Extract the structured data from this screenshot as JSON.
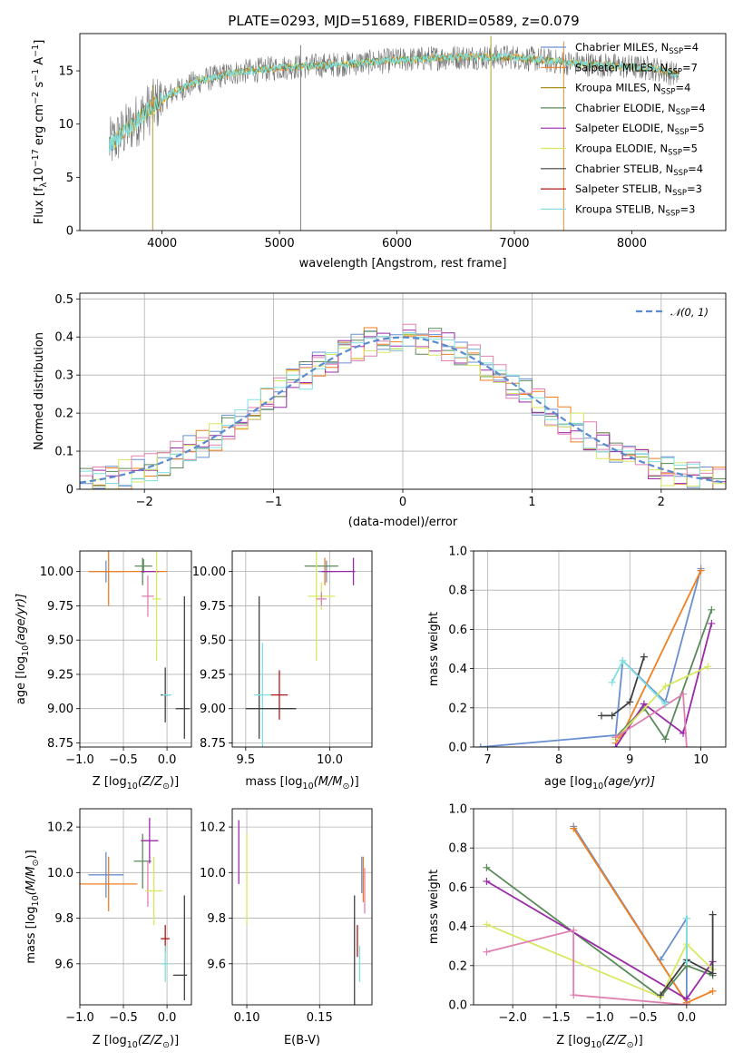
{
  "figure_title": "PLATE=0293, MJD=51689, FIBERID=0589, z=0.079",
  "colors": {
    "chabrier_miles": "#6a8fd0",
    "salpeter_miles": "#f07f20",
    "kroupa_miles": "#a89020",
    "chabrier_elodie": "#5a8a5a",
    "salpeter_elodie": "#9a2aa8",
    "kroupa_elodie": "#d8e860",
    "chabrier_stelib": "#404040",
    "salpeter_stelib": "#b01818",
    "kroupa_stelib": "#80e0e0",
    "pink": "#e080b0",
    "data_gray": "#707070",
    "normal_curve": "#5a8ad0"
  },
  "chart_data": [
    {
      "id": "spectrum",
      "type": "line",
      "title": "PLATE=0293, MJD=51689, FIBERID=0589, z=0.079",
      "xlabel": "wavelength [Angstrom, rest frame]",
      "ylabel_parts": [
        "Flux [f",
        "λ",
        "10",
        "−17",
        " erg cm",
        "−2",
        " s",
        "−1",
        " A",
        "−1",
        "]"
      ],
      "xlim": [
        3300,
        8800
      ],
      "ylim": [
        0,
        18.5
      ],
      "xticks": [
        4000,
        5000,
        6000,
        7000,
        8000
      ],
      "yticks": [
        0,
        5,
        10,
        15
      ],
      "grid": false,
      "legend_position": "right",
      "legend": [
        {
          "label": "Chabrier MILES, N",
          "sub": "SSP",
          "value": "=4",
          "color": "chabrier_miles"
        },
        {
          "label": "Salpeter MILES, N",
          "sub": "SSP",
          "value": "=7",
          "color": "salpeter_miles"
        },
        {
          "label": "Kroupa MILES, N",
          "sub": "SSP",
          "value": "=4",
          "color": "kroupa_miles"
        },
        {
          "label": "Chabrier ELODIE, N",
          "sub": "SSP",
          "value": "=4",
          "color": "chabrier_elodie"
        },
        {
          "label": "Salpeter ELODIE, N",
          "sub": "SSP",
          "value": "=5",
          "color": "salpeter_elodie"
        },
        {
          "label": "Kroupa ELODIE, N",
          "sub": "SSP",
          "value": "=5",
          "color": "kroupa_elodie"
        },
        {
          "label": "Chabrier STELIB, N",
          "sub": "SSP",
          "value": "=4",
          "color": "chabrier_stelib"
        },
        {
          "label": "Salpeter STELIB, N",
          "sub": "SSP",
          "value": "=3",
          "color": "salpeter_stelib"
        },
        {
          "label": "Kroupa STELIB, N",
          "sub": "SSP",
          "value": "=3",
          "color": "kroupa_stelib"
        }
      ],
      "continuum": [
        [
          3550,
          8.0
        ],
        [
          3700,
          9.5
        ],
        [
          3900,
          11.5
        ],
        [
          4100,
          13.0
        ],
        [
          4300,
          14.0
        ],
        [
          4600,
          14.8
        ],
        [
          5000,
          15.3
        ],
        [
          5500,
          15.6
        ],
        [
          6000,
          16.0
        ],
        [
          6500,
          16.3
        ],
        [
          7000,
          16.3
        ],
        [
          7400,
          15.8
        ],
        [
          7800,
          15.5
        ],
        [
          8200,
          15.2
        ],
        [
          8400,
          14.6
        ]
      ],
      "spikes": [
        {
          "x": 3920,
          "y": 0,
          "color": "kroupa_miles"
        },
        {
          "x": 5180,
          "y": 0,
          "color": "data_gray"
        },
        {
          "x": 6800,
          "y": 0,
          "color": "kroupa_miles"
        },
        {
          "x": 7420,
          "y": 0,
          "color": "salpeter_miles"
        }
      ]
    },
    {
      "id": "residuals",
      "type": "histogram",
      "xlabel": "(data-model)/error",
      "ylabel": "Normed distribution",
      "xlim": [
        -2.5,
        2.5
      ],
      "ylim": [
        0,
        0.515
      ],
      "xticks": [
        -2,
        -1,
        0,
        1,
        2
      ],
      "yticks": [
        0.0,
        0.1,
        0.2,
        0.3,
        0.4,
        0.5
      ],
      "grid": true,
      "legend_position": "top-right",
      "legend": [
        {
          "label": "𝒩(0, 1)",
          "color": "normal_curve",
          "style": "dashed"
        }
      ],
      "bin_width": 0.1,
      "series_colors": [
        "chabrier_miles",
        "salpeter_miles",
        "chabrier_elodie",
        "salpeter_elodie",
        "kroupa_elodie",
        "pink",
        "kroupa_stelib"
      ]
    },
    {
      "id": "age_vs_Z",
      "type": "errorbar",
      "xlabel_parts": [
        "Z [log",
        "10",
        "(Z/Z",
        "⊙",
        ")]"
      ],
      "ylabel_parts": [
        "age  [log",
        "10",
        "(age/yr)]"
      ],
      "xlim": [
        -1.0,
        0.28
      ],
      "ylim": [
        8.72,
        10.15
      ],
      "xticks": [
        -1.0,
        -0.5,
        0.0
      ],
      "xtick_labels": [
        "−1.0",
        "−0.5",
        "0.0"
      ],
      "yticks": [
        8.75,
        9.0,
        9.25,
        9.5,
        9.75,
        10.0
      ],
      "yticklabels": [
        "8.75",
        "9.00",
        "9.25",
        "9.50",
        "9.75",
        "10.00"
      ],
      "grid": true,
      "points": [
        {
          "x": -0.7,
          "y": 10.0,
          "xerr": 0.2,
          "yerr": 0.08,
          "color": "chabrier_miles"
        },
        {
          "x": -0.45,
          "y": 10.0,
          "xerr": 0.45,
          "yerr": 0.0,
          "color": "salpeter_miles"
        },
        {
          "x": -0.67,
          "y": 10.0,
          "xerr": 0.0,
          "yerr": 0.25,
          "color": "salpeter_miles"
        },
        {
          "x": -0.27,
          "y": 10.04,
          "xerr": 0.1,
          "yerr": 0.05,
          "color": "chabrier_elodie"
        },
        {
          "x": -0.28,
          "y": 10.0,
          "xerr": 0.02,
          "yerr": 0.1,
          "color": "chabrier_elodie"
        },
        {
          "x": -0.2,
          "y": 10.0,
          "xerr": 0.1,
          "yerr": 0.0,
          "color": "salpeter_elodie"
        },
        {
          "x": -0.22,
          "y": 9.82,
          "xerr": 0.07,
          "yerr": 0.15,
          "color": "pink"
        },
        {
          "x": -0.12,
          "y": 9.8,
          "xerr": 0.05,
          "yerr": 0.45,
          "color": "kroupa_elodie"
        },
        {
          "x": -0.02,
          "y": 9.1,
          "xerr": 0.05,
          "yerr": 0.2,
          "color": "chabrier_stelib"
        },
        {
          "x": 0.0,
          "y": 9.1,
          "xerr": 0.05,
          "yerr": 0.0,
          "color": "kroupa_stelib"
        },
        {
          "x": 0.18,
          "y": 9.0,
          "xerr": 0.08,
          "yerr": 0.0,
          "color": "chabrier_stelib"
        },
        {
          "x": 0.2,
          "y": 9.3,
          "xerr": 0.0,
          "yerr": 0.52,
          "color": "chabrier_stelib"
        }
      ]
    },
    {
      "id": "age_vs_mass",
      "type": "errorbar",
      "xlabel_parts": [
        "mass [log",
        "10",
        "(M/M",
        "⊙",
        ")]"
      ],
      "ylabel": "",
      "xlim": [
        9.42,
        10.25
      ],
      "ylim": [
        8.72,
        10.15
      ],
      "xticks": [
        9.5,
        10.0
      ],
      "xtick_labels": [
        "9.5",
        "10.0"
      ],
      "yticks": [
        8.75,
        9.0,
        9.25,
        9.5,
        9.75,
        10.0
      ],
      "yticklabels": [
        "8.75",
        "9.00",
        "9.25",
        "9.50",
        "9.75",
        "10.00"
      ],
      "grid": true,
      "points": [
        {
          "x": 9.98,
          "y": 10.0,
          "xerr": 0.05,
          "yerr": 0.08,
          "color": "chabrier_miles"
        },
        {
          "x": 9.97,
          "y": 10.0,
          "xerr": 0.0,
          "yerr": 0.1,
          "color": "salpeter_miles"
        },
        {
          "x": 9.95,
          "y": 10.04,
          "xerr": 0.1,
          "yerr": 0.0,
          "color": "chabrier_elodie"
        },
        {
          "x": 10.05,
          "y": 10.0,
          "xerr": 0.1,
          "yerr": 0.0,
          "color": "salpeter_elodie"
        },
        {
          "x": 10.14,
          "y": 10.0,
          "xerr": 0.0,
          "yerr": 0.1,
          "color": "salpeter_elodie"
        },
        {
          "x": 9.95,
          "y": 9.82,
          "xerr": 0.08,
          "yerr": 0.1,
          "color": "kroupa_elodie"
        },
        {
          "x": 9.92,
          "y": 9.8,
          "xerr": 0.0,
          "yerr": 0.45,
          "color": "kroupa_elodie"
        },
        {
          "x": 9.95,
          "y": 9.8,
          "xerr": 0.03,
          "yerr": 0.05,
          "color": "pink"
        },
        {
          "x": 9.58,
          "y": 9.3,
          "xerr": 0.0,
          "yerr": 0.52,
          "color": "chabrier_stelib"
        },
        {
          "x": 9.6,
          "y": 9.1,
          "xerr": 0.05,
          "yerr": 0.38,
          "color": "kroupa_stelib"
        },
        {
          "x": 9.7,
          "y": 9.1,
          "xerr": 0.05,
          "yerr": 0.18,
          "color": "salpeter_stelib"
        },
        {
          "x": 9.65,
          "y": 9.0,
          "xerr": 0.15,
          "yerr": 0.0,
          "color": "chabrier_stelib"
        }
      ]
    },
    {
      "id": "weight_vs_age",
      "type": "line",
      "xlabel_parts": [
        "age  [log",
        "10",
        "(age/yr)]"
      ],
      "ylabel": "mass weight",
      "xlim": [
        6.8,
        10.35
      ],
      "ylim": [
        0,
        1.0
      ],
      "xticks": [
        7,
        8,
        9,
        10
      ],
      "xtick_labels": [
        "7",
        "8",
        "9",
        "10"
      ],
      "yticks": [
        0.0,
        0.2,
        0.4,
        0.6,
        0.8,
        1.0
      ],
      "yticklabels": [
        "0.0",
        "0.2",
        "0.4",
        "0.6",
        "0.8",
        "1.0"
      ],
      "grid": true,
      "series": [
        {
          "color": "chabrier_miles",
          "x": [
            6.9,
            8.8,
            8.9,
            9.5,
            10.0
          ],
          "y": [
            0.0,
            0.06,
            0.44,
            0.23,
            0.91
          ]
        },
        {
          "color": "salpeter_miles",
          "x": [
            8.8,
            8.9,
            10.0
          ],
          "y": [
            0.02,
            0.07,
            0.9
          ]
        },
        {
          "color": "chabrier_elodie",
          "x": [
            8.8,
            9.2,
            9.5,
            10.15
          ],
          "y": [
            0.05,
            0.2,
            0.04,
            0.7
          ]
        },
        {
          "color": "salpeter_elodie",
          "x": [
            8.8,
            9.2,
            9.75,
            10.15
          ],
          "y": [
            0.0,
            0.22,
            0.07,
            0.63
          ]
        },
        {
          "color": "kroupa_elodie",
          "x": [
            8.8,
            9.5,
            10.1
          ],
          "y": [
            0.04,
            0.31,
            0.41
          ]
        },
        {
          "color": "pink",
          "x": [
            8.8,
            9.75,
            9.8
          ],
          "y": [
            0.05,
            0.27,
            0.0
          ]
        },
        {
          "color": "chabrier_stelib",
          "x": [
            8.6,
            8.75,
            9.0,
            9.2
          ],
          "y": [
            0.16,
            0.16,
            0.23,
            0.46
          ]
        },
        {
          "color": "kroupa_stelib",
          "x": [
            8.75,
            8.9,
            9.5
          ],
          "y": [
            0.33,
            0.44,
            0.22
          ]
        }
      ]
    },
    {
      "id": "mass_vs_Z",
      "type": "errorbar",
      "xlabel_parts": [
        "Z [log",
        "10",
        "(Z/Z",
        "⊙",
        ")]"
      ],
      "ylabel_parts": [
        "mass [log",
        "10",
        "(M/M",
        "⊙",
        ")]"
      ],
      "xlim": [
        -1.0,
        0.28
      ],
      "ylim": [
        9.42,
        10.28
      ],
      "xticks": [
        -1.0,
        -0.5,
        0.0
      ],
      "xtick_labels": [
        "−1.0",
        "−0.5",
        "0.0"
      ],
      "yticks": [
        9.6,
        9.8,
        10.0,
        10.2
      ],
      "yticklabels": [
        "9.6",
        "9.8",
        "10.0",
        "10.2"
      ],
      "grid": true,
      "points": [
        {
          "x": -0.7,
          "y": 9.99,
          "xerr": 0.2,
          "yerr": 0.1,
          "color": "chabrier_miles"
        },
        {
          "x": -0.67,
          "y": 9.95,
          "xerr": 0.33,
          "yerr": 0.12,
          "color": "salpeter_miles"
        },
        {
          "x": -0.28,
          "y": 10.05,
          "xerr": 0.1,
          "yerr": 0.12,
          "color": "chabrier_elodie"
        },
        {
          "x": -0.2,
          "y": 10.14,
          "xerr": 0.1,
          "yerr": 0.1,
          "color": "salpeter_elodie"
        },
        {
          "x": -0.22,
          "y": 9.95,
          "xerr": 0.0,
          "yerr": 0.1,
          "color": "pink"
        },
        {
          "x": -0.15,
          "y": 9.92,
          "xerr": 0.1,
          "yerr": 0.15,
          "color": "kroupa_elodie"
        },
        {
          "x": -0.02,
          "y": 9.71,
          "xerr": 0.05,
          "yerr": 0.06,
          "color": "salpeter_stelib"
        },
        {
          "x": -0.02,
          "y": 9.6,
          "xerr": 0.04,
          "yerr": 0.08,
          "color": "kroupa_stelib"
        },
        {
          "x": 0.15,
          "y": 9.55,
          "xerr": 0.08,
          "yerr": 0.0,
          "color": "chabrier_stelib"
        },
        {
          "x": 0.2,
          "y": 9.67,
          "xerr": 0.0,
          "yerr": 0.23,
          "color": "chabrier_stelib"
        }
      ]
    },
    {
      "id": "mass_vs_ebv",
      "type": "errorbar",
      "xlabel": "E(B-V)",
      "ylabel": "",
      "xlim": [
        0.09,
        0.186
      ],
      "ylim": [
        9.42,
        10.28
      ],
      "xticks": [
        0.1,
        0.15
      ],
      "xtick_labels": [
        "0.10",
        "0.15"
      ],
      "yticks": [
        9.6,
        9.8,
        10.0,
        10.2
      ],
      "yticklabels": [
        "9.6",
        "9.8",
        "10.0",
        "10.2"
      ],
      "grid": true,
      "points": [
        {
          "x": 0.0945,
          "y": 10.09,
          "xerr": 0.0,
          "yerr": 0.14,
          "color": "salpeter_elodie"
        },
        {
          "x": 0.1,
          "y": 9.97,
          "xerr": 0.0,
          "yerr": 0.2,
          "color": "kroupa_elodie"
        },
        {
          "x": 0.174,
          "y": 9.65,
          "xerr": 0.0,
          "yerr": 0.25,
          "color": "chabrier_stelib"
        },
        {
          "x": 0.176,
          "y": 9.7,
          "xerr": 0.0,
          "yerr": 0.07,
          "color": "salpeter_stelib"
        },
        {
          "x": 0.1775,
          "y": 9.6,
          "xerr": 0.0,
          "yerr": 0.08,
          "color": "kroupa_stelib"
        },
        {
          "x": 0.179,
          "y": 9.99,
          "xerr": 0.0,
          "yerr": 0.08,
          "color": "chabrier_miles"
        },
        {
          "x": 0.18,
          "y": 9.97,
          "xerr": 0.0,
          "yerr": 0.1,
          "color": "salpeter_miles"
        },
        {
          "x": 0.181,
          "y": 9.92,
          "xerr": 0.0,
          "yerr": 0.1,
          "color": "pink"
        }
      ]
    },
    {
      "id": "weight_vs_Z",
      "type": "line",
      "xlabel_parts": [
        "Z [log",
        "10",
        "(Z/Z",
        "⊙",
        ")]"
      ],
      "ylabel": "mass weight",
      "xlim": [
        -2.45,
        0.45
      ],
      "ylim": [
        0,
        1.0
      ],
      "xticks": [
        -2.0,
        -1.5,
        -1.0,
        -0.5,
        0.0
      ],
      "xtick_labels": [
        "−2.0",
        "−1.5",
        "−1.0",
        "−0.5",
        "0.0"
      ],
      "yticks": [
        0.0,
        0.2,
        0.4,
        0.6,
        0.8,
        1.0
      ],
      "yticklabels": [
        "0.0",
        "0.2",
        "0.4",
        "0.6",
        "0.8",
        "1.0"
      ],
      "grid": true,
      "series": [
        {
          "color": "chabrier_miles",
          "x": [
            -1.3,
            0.0,
            0.0,
            -0.3
          ],
          "y": [
            0.91,
            0.01,
            0.44,
            0.23
          ]
        },
        {
          "color": "salpeter_miles",
          "x": [
            -1.3,
            0.0,
            0.3
          ],
          "y": [
            0.9,
            0.01,
            0.07
          ]
        },
        {
          "color": "chabrier_elodie",
          "x": [
            -2.3,
            -0.3,
            0.0,
            0.3
          ],
          "y": [
            0.7,
            0.04,
            0.2,
            0.15
          ]
        },
        {
          "color": "salpeter_elodie",
          "x": [
            -2.3,
            0.0,
            0.3
          ],
          "y": [
            0.63,
            0.03,
            0.22
          ]
        },
        {
          "color": "kroupa_elodie",
          "x": [
            -2.3,
            -0.3,
            0.0,
            0.3
          ],
          "y": [
            0.41,
            0.04,
            0.31,
            0.18
          ]
        },
        {
          "color": "pink",
          "x": [
            -2.3,
            -1.3,
            -1.3,
            0.0
          ],
          "y": [
            0.27,
            0.38,
            0.05,
            0.0
          ]
        },
        {
          "color": "chabrier_stelib",
          "x": [
            -0.3,
            0.0,
            0.3,
            0.3
          ],
          "y": [
            0.05,
            0.23,
            0.16,
            0.46
          ]
        },
        {
          "color": "kroupa_stelib",
          "x": [
            0.0,
            0.0
          ],
          "y": [
            0.22,
            0.44
          ]
        }
      ]
    }
  ]
}
